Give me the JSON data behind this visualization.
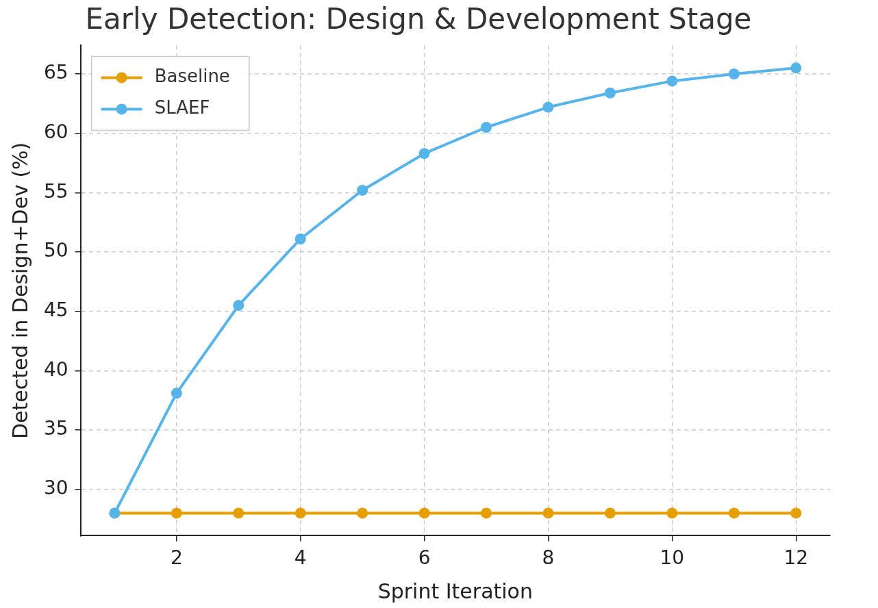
{
  "chart_data": {
    "type": "line",
    "title": "Early Detection: Design & Development Stage",
    "xlabel": "Sprint Iteration",
    "ylabel": "Detected in Design+Dev (%)",
    "x": [
      1,
      2,
      3,
      4,
      5,
      6,
      7,
      8,
      9,
      10,
      11,
      12
    ],
    "series": [
      {
        "name": "Baseline",
        "color": "#e69f00",
        "values": [
          28,
          28,
          28,
          28,
          28,
          28,
          28,
          28,
          28,
          28,
          28,
          28
        ]
      },
      {
        "name": "SLAEF",
        "color": "#56b4e9",
        "values": [
          28,
          38.1,
          45.5,
          51.1,
          55.2,
          58.3,
          60.5,
          62.2,
          63.4,
          64.4,
          65,
          65.5
        ]
      }
    ],
    "xlim": [
      0.45,
      12.55
    ],
    "xticks": [
      2,
      4,
      6,
      8,
      10,
      12
    ],
    "ylim": [
      26.1,
      67.4
    ],
    "yticks": [
      30,
      35,
      40,
      45,
      50,
      55,
      60,
      65
    ],
    "grid": true,
    "legend": "top left",
    "marker": "circle",
    "line_style": "solid"
  }
}
